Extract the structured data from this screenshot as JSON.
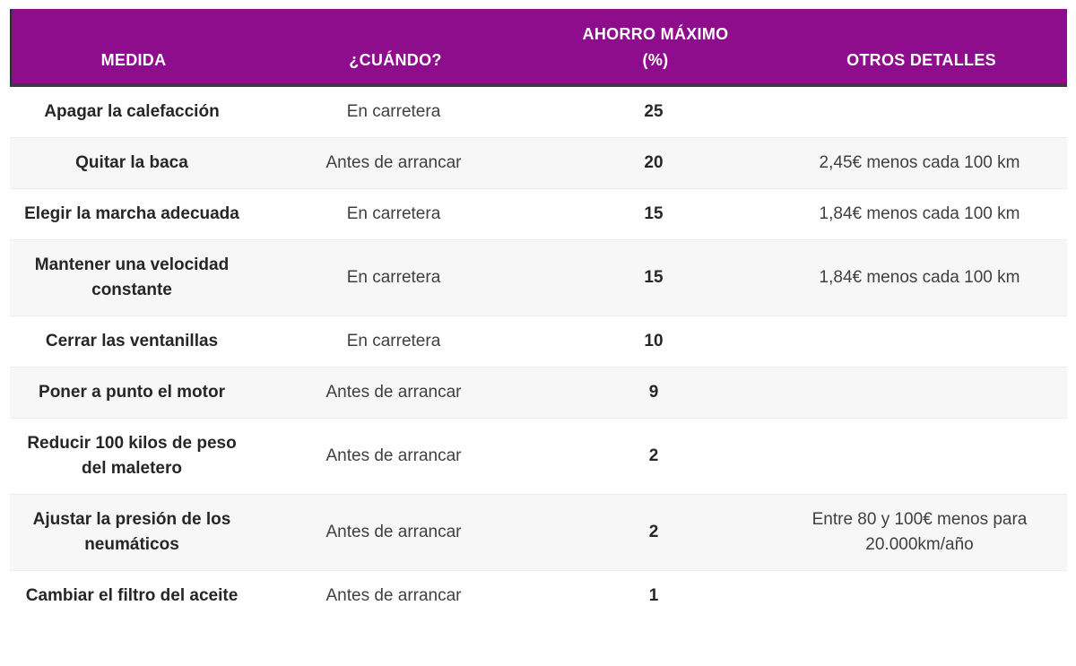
{
  "chart_data": {
    "type": "table",
    "columns": [
      "MEDIDA",
      "¿CUÁNDO?",
      "AHORRO MÁXIMO (%)",
      "OTROS DETALLES"
    ],
    "rows": [
      {
        "medida": "Apagar la calefacción",
        "cuando": "En carretera",
        "ahorro_maximo": "25",
        "detalles": ""
      },
      {
        "medida": "Quitar la baca",
        "cuando": "Antes de arrancar",
        "ahorro_maximo": "20",
        "detalles": "2,45€ menos cada 100 km"
      },
      {
        "medida": "Elegir la marcha adecuada",
        "cuando": "En carretera",
        "ahorro_maximo": "15",
        "detalles": "1,84€ menos cada 100 km"
      },
      {
        "medida": "Mantener una velocidad constante",
        "cuando": "En carretera",
        "ahorro_maximo": "15",
        "detalles": "1,84€ menos cada 100 km"
      },
      {
        "medida": "Cerrar las ventanillas",
        "cuando": "En carretera",
        "ahorro_maximo": "10",
        "detalles": ""
      },
      {
        "medida": "Poner a punto el motor",
        "cuando": "Antes de arrancar",
        "ahorro_maximo": "9",
        "detalles": ""
      },
      {
        "medida": "Reducir 100 kilos de peso del maletero",
        "cuando": "Antes de arrancar",
        "ahorro_maximo": "2",
        "detalles": ""
      },
      {
        "medida": "Ajustar la presión de los neumáticos",
        "cuando": "Antes de arrancar",
        "ahorro_maximo": "2",
        "detalles": "Entre 80 y 100€ menos para 20.000km/año"
      },
      {
        "medida": "Cambiar el filtro del aceite",
        "cuando": "Antes de arrancar",
        "ahorro_maximo": "1",
        "detalles": ""
      }
    ],
    "colors": {
      "header_bg": "#8E0D8C",
      "header_text": "#FFFFFF",
      "header_underline": "#3B3B3B",
      "row_alt_bg": "#F7F7F7",
      "row_border": "#ECECEC",
      "text_bold": "#262626",
      "text_regular": "#3F3F3F"
    },
    "layout": {
      "grid": false,
      "legend": "none",
      "zebra_striping": true
    }
  }
}
